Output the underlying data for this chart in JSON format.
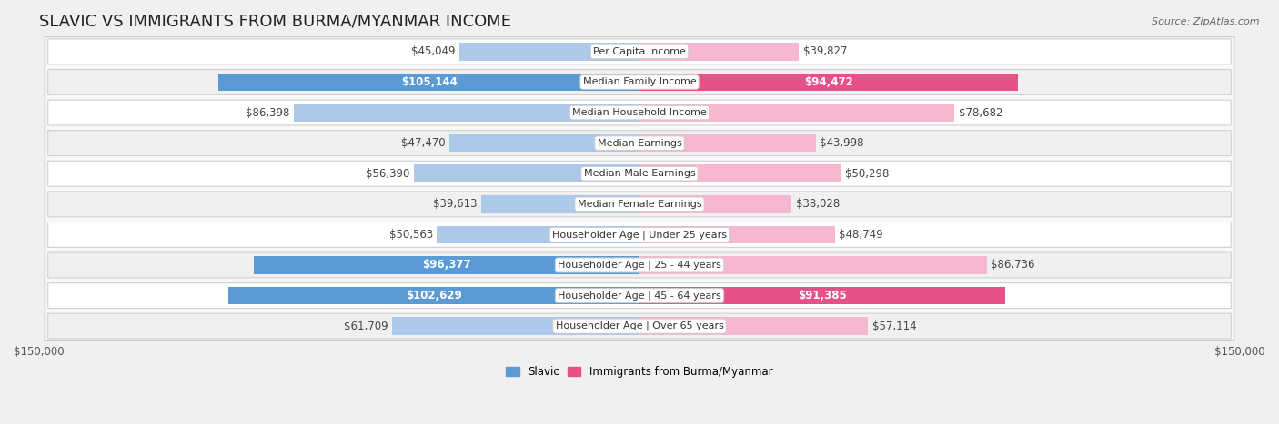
{
  "title": "SLAVIC VS IMMIGRANTS FROM BURMA/MYANMAR INCOME",
  "source": "Source: ZipAtlas.com",
  "categories": [
    "Per Capita Income",
    "Median Family Income",
    "Median Household Income",
    "Median Earnings",
    "Median Male Earnings",
    "Median Female Earnings",
    "Householder Age | Under 25 years",
    "Householder Age | 25 - 44 years",
    "Householder Age | 45 - 64 years",
    "Householder Age | Over 65 years"
  ],
  "slavic_values": [
    45049,
    105144,
    86398,
    47470,
    56390,
    39613,
    50563,
    96377,
    102629,
    61709
  ],
  "burma_values": [
    39827,
    94472,
    78682,
    43998,
    50298,
    38028,
    48749,
    86736,
    91385,
    57114
  ],
  "slavic_color_light": "#adc8e8",
  "slavic_color_dark": "#5b9bd5",
  "burma_color_light": "#f5b8d0",
  "burma_color_dark": "#e8508a",
  "slavic_label": "Slavic",
  "burma_label": "Immigrants from Burma/Myanmar",
  "max_value": 150000,
  "bg_color": "#f0f0f0",
  "row_colors": [
    "#ffffff",
    "#f0f0f0"
  ],
  "row_border_color": "#d0d0d0",
  "label_box_color": "#ffffff",
  "label_box_edge": "#cccccc",
  "title_fontsize": 13,
  "bar_label_fontsize": 8.5,
  "category_fontsize": 8,
  "axis_label_fontsize": 8.5,
  "white_text_slavic": [
    105144,
    96377,
    102629
  ],
  "white_text_burma": [
    94472,
    91385
  ]
}
